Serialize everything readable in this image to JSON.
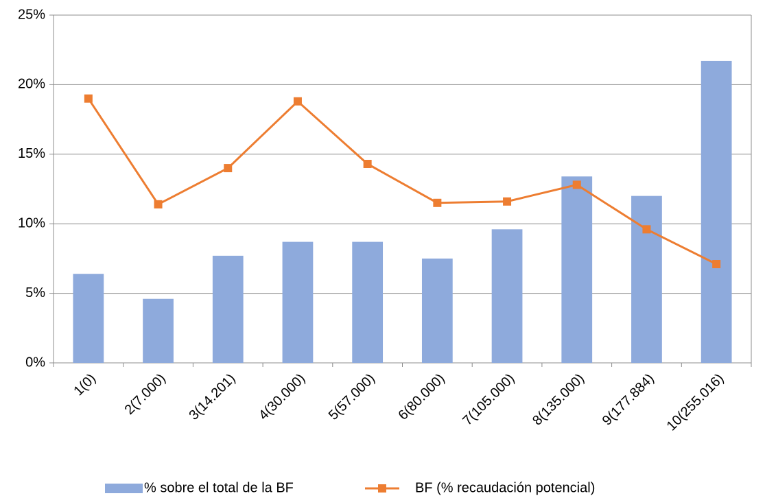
{
  "chart_data": {
    "type": "bar-line",
    "categories": [
      "1(0)",
      "2(7.000)",
      "3(14.201)",
      "4(30.000)",
      "5(57.000)",
      "6(80.000)",
      "7(105.000)",
      "8(135.000)",
      "9(177.884)",
      "10(255.016)"
    ],
    "series": [
      {
        "name": "% sobre el total de la BF",
        "type": "bar",
        "color": "#8eaadc",
        "values": [
          6.4,
          4.6,
          7.7,
          8.7,
          8.7,
          7.5,
          9.6,
          13.4,
          12.0,
          21.7
        ]
      },
      {
        "name": "BF (% recaudación potencial)",
        "type": "line",
        "color": "#ed7d31",
        "values": [
          19.0,
          11.4,
          14.0,
          18.8,
          14.3,
          11.5,
          11.6,
          12.8,
          9.6,
          7.1
        ]
      }
    ],
    "ylim": [
      0,
      25
    ],
    "yticks": [
      {
        "value": 0,
        "label": "0%"
      },
      {
        "value": 5,
        "label": "5%"
      },
      {
        "value": 10,
        "label": "10%"
      },
      {
        "value": 15,
        "label": "15%"
      },
      {
        "value": 20,
        "label": "20%"
      },
      {
        "value": 25,
        "label": "25%"
      }
    ],
    "grid": true,
    "legend": "bottom"
  }
}
